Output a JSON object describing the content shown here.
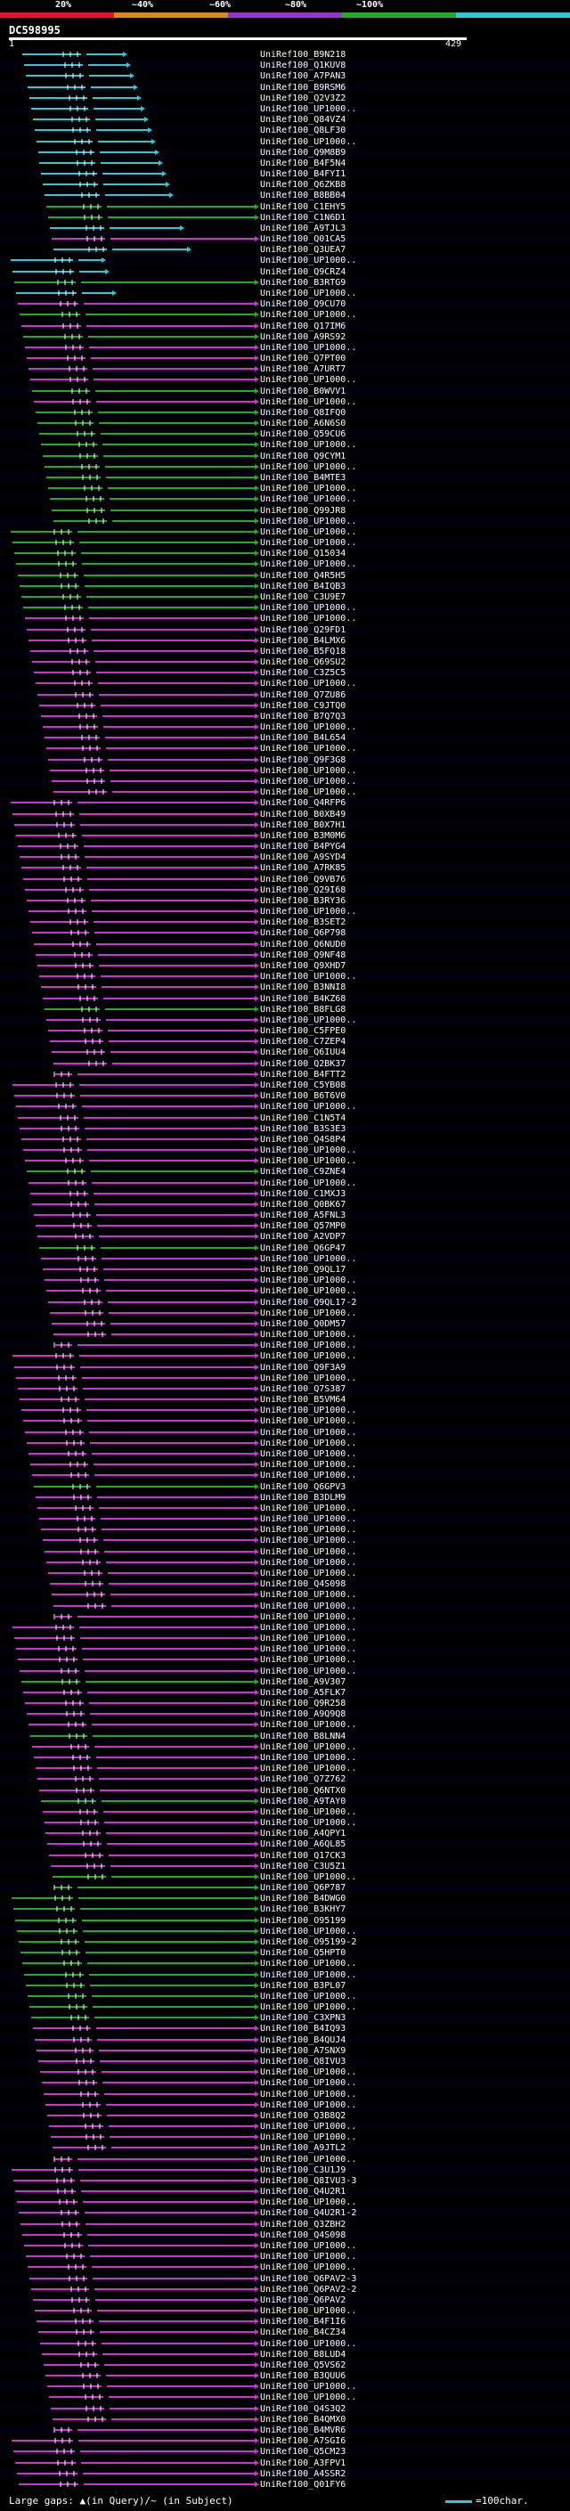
{
  "legend": {
    "labels": [
      "20%",
      "~40%",
      "~60%",
      "~80%",
      "~100%"
    ],
    "colors": [
      "#e8112d",
      "#d98a1b",
      "#9932cc",
      "#22aa22",
      "#33c6d6"
    ]
  },
  "query": {
    "name": "DC598995",
    "start": "1",
    "end": "429"
  },
  "footer": {
    "gaps_text": "Large gaps: ▲(in Query)/~ (in Subject)",
    "scale_text": "=100char."
  },
  "hits": [
    {
      "label": "UniRef100_B9N218",
      "color": "cyan"
    },
    {
      "label": "UniRef100_Q1KUV8",
      "color": "cyan"
    },
    {
      "label": "UniRef100_A7PAN3",
      "color": "cyan"
    },
    {
      "label": "UniRef100_B9RSM6",
      "color": "cyan"
    },
    {
      "label": "UniRef100_Q2V3Z2",
      "color": "cyan"
    },
    {
      "label": "UniRef100_UP1000..",
      "color": "cyan"
    },
    {
      "label": "UniRef100_Q84VZ4",
      "color": "cyan"
    },
    {
      "label": "UniRef100_Q8LF30",
      "color": "cyan"
    },
    {
      "label": "UniRef100_UP1000..",
      "color": "cyan"
    },
    {
      "label": "UniRef100_Q9M8B9",
      "color": "cyan"
    },
    {
      "label": "UniRef100_B4F5N4",
      "color": "cyan"
    },
    {
      "label": "UniRef100_B4FYI1",
      "color": "cyan"
    },
    {
      "label": "UniRef100_Q6ZKB8",
      "color": "cyan"
    },
    {
      "label": "UniRef100_B8BB04",
      "color": "cyan"
    },
    {
      "label": "UniRef100_C1EHY5",
      "color": "green"
    },
    {
      "label": "UniRef100_C1N6D1",
      "color": "green"
    },
    {
      "label": "UniRef100_A9TJL3",
      "color": "cyan"
    },
    {
      "label": "UniRef100_Q01CA5",
      "color": "magenta"
    },
    {
      "label": "UniRef100_Q3UEA7",
      "color": "cyan"
    },
    {
      "label": "UniRef100_UP1000..",
      "color": "cyan"
    },
    {
      "label": "UniRef100_Q9CRZ4",
      "color": "cyan"
    },
    {
      "label": "UniRef100_B3RTG9",
      "color": "green"
    },
    {
      "label": "UniRef100_UP1000..",
      "color": "cyan"
    },
    {
      "label": "UniRef100_Q9CU70",
      "color": "magenta"
    },
    {
      "label": "UniRef100_UP1000..",
      "color": "green"
    },
    {
      "label": "UniRef100_Q17IM6",
      "color": "magenta"
    },
    {
      "label": "UniRef100_A9RS92",
      "color": "green"
    },
    {
      "label": "UniRef100_UP1000..",
      "color": "magenta"
    },
    {
      "label": "UniRef100_Q7PT00",
      "color": "magenta"
    },
    {
      "label": "UniRef100_A7URT7",
      "color": "magenta"
    },
    {
      "label": "UniRef100_UP1000..",
      "color": "magenta"
    },
    {
      "label": "UniRef100_B0WVV1",
      "color": "green"
    },
    {
      "label": "UniRef100_UP1000..",
      "color": "magenta"
    },
    {
      "label": "UniRef100_Q8IFQ0",
      "color": "green"
    },
    {
      "label": "UniRef100_A6N6S0",
      "color": "green"
    },
    {
      "label": "UniRef100_Q59CU6",
      "color": "green"
    },
    {
      "label": "UniRef100_UP1000..",
      "color": "green"
    },
    {
      "label": "UniRef100_Q9CYM1",
      "color": "green"
    },
    {
      "label": "UniRef100_UP1000..",
      "color": "green"
    },
    {
      "label": "UniRef100_B4MTE3",
      "color": "green"
    },
    {
      "label": "UniRef100_UP1000..",
      "color": "green"
    },
    {
      "label": "UniRef100_UP1000..",
      "color": "green"
    },
    {
      "label": "UniRef100_Q99JR8",
      "color": "green"
    },
    {
      "label": "UniRef100_UP1000..",
      "color": "green"
    },
    {
      "label": "UniRef100_UP1000..",
      "color": "green"
    },
    {
      "label": "UniRef100_UP1000..",
      "color": "green"
    },
    {
      "label": "UniRef100_Q15034",
      "color": "green"
    },
    {
      "label": "UniRef100_UP1000..",
      "color": "green"
    },
    {
      "label": "UniRef100_Q4R5H5",
      "color": "green"
    },
    {
      "label": "UniRef100_B4IQB3",
      "color": "green"
    },
    {
      "label": "UniRef100_C3U9E7",
      "color": "green"
    },
    {
      "label": "UniRef100_UP1000..",
      "color": "green"
    },
    {
      "label": "UniRef100_UP1000..",
      "color": "magenta"
    },
    {
      "label": "UniRef100_Q29FD1",
      "color": "magenta"
    },
    {
      "label": "UniRef100_B4LMX6",
      "color": "magenta"
    },
    {
      "label": "UniRef100_B5FQ18",
      "color": "magenta"
    },
    {
      "label": "UniRef100_Q69SU2",
      "color": "magenta"
    },
    {
      "label": "UniRef100_C3Z5C5",
      "color": "magenta"
    },
    {
      "label": "UniRef100_UP1000..",
      "color": "magenta"
    },
    {
      "label": "UniRef100_Q7ZU86",
      "color": "magenta"
    },
    {
      "label": "UniRef100_C9JTQ0",
      "color": "magenta"
    },
    {
      "label": "UniRef100_B7Q7Q3",
      "color": "magenta"
    },
    {
      "label": "UniRef100_UP1000..",
      "color": "magenta"
    },
    {
      "label": "UniRef100_B4L654",
      "color": "magenta"
    },
    {
      "label": "UniRef100_UP1000..",
      "color": "magenta"
    },
    {
      "label": "UniRef100_Q9F3G8",
      "color": "magenta"
    },
    {
      "label": "UniRef100_UP1000..",
      "color": "magenta"
    },
    {
      "label": "UniRef100_UP1000..",
      "color": "magenta"
    },
    {
      "label": "UniRef100_UP1000..",
      "color": "magenta"
    },
    {
      "label": "UniRef100_Q4RFP6",
      "color": "magenta"
    },
    {
      "label": "UniRef100_B0XB49",
      "color": "magenta"
    },
    {
      "label": "UniRef100_B0X7H1",
      "color": "magenta"
    },
    {
      "label": "UniRef100_B3M0M6",
      "color": "magenta"
    },
    {
      "label": "UniRef100_B4PYG4",
      "color": "magenta"
    },
    {
      "label": "UniRef100_A9SYD4",
      "color": "magenta"
    },
    {
      "label": "UniRef100_A7RK85",
      "color": "magenta"
    },
    {
      "label": "UniRef100_Q9VB76",
      "color": "magenta"
    },
    {
      "label": "UniRef100_Q29I68",
      "color": "magenta"
    },
    {
      "label": "UniRef100_B3RY36",
      "color": "magenta"
    },
    {
      "label": "UniRef100_UP1000..",
      "color": "magenta"
    },
    {
      "label": "UniRef100_B3SET2",
      "color": "magenta"
    },
    {
      "label": "UniRef100_Q6P798",
      "color": "magenta"
    },
    {
      "label": "UniRef100_Q6NUD0",
      "color": "magenta"
    },
    {
      "label": "UniRef100_Q9NF48",
      "color": "magenta"
    },
    {
      "label": "UniRef100_Q9XHD7",
      "color": "magenta"
    },
    {
      "label": "UniRef100_UP1000..",
      "color": "magenta"
    },
    {
      "label": "UniRef100_B3NNI8",
      "color": "magenta"
    },
    {
      "label": "UniRef100_B4KZ68",
      "color": "magenta"
    },
    {
      "label": "UniRef100_B8FLG8",
      "color": "green"
    },
    {
      "label": "UniRef100_UP1000..",
      "color": "magenta"
    },
    {
      "label": "UniRef100_C5FPE0",
      "color": "magenta"
    },
    {
      "label": "UniRef100_C7ZEP4",
      "color": "magenta"
    },
    {
      "label": "UniRef100_Q6IUU4",
      "color": "magenta"
    },
    {
      "label": "UniRef100_Q2BK37",
      "color": "magenta"
    },
    {
      "label": "UniRef100_B4FTT2",
      "color": "magenta"
    },
    {
      "label": "UniRef100_C5YB08",
      "color": "magenta"
    },
    {
      "label": "UniRef100_B6T6V0",
      "color": "magenta"
    },
    {
      "label": "UniRef100_UP1000..",
      "color": "magenta"
    },
    {
      "label": "UniRef100_C1N5T4",
      "color": "magenta"
    },
    {
      "label": "UniRef100_B3S3E3",
      "color": "magenta"
    },
    {
      "label": "UniRef100_Q4S8P4",
      "color": "magenta"
    },
    {
      "label": "UniRef100_UP1000..",
      "color": "magenta"
    },
    {
      "label": "UniRef100_UP1000..",
      "color": "magenta"
    },
    {
      "label": "UniRef100_C9ZNE4",
      "color": "green"
    },
    {
      "label": "UniRef100_UP1000..",
      "color": "magenta"
    },
    {
      "label": "UniRef100_C1MXJ3",
      "color": "magenta"
    },
    {
      "label": "UniRef100_Q0BK67",
      "color": "magenta"
    },
    {
      "label": "UniRef100_A5FNL3",
      "color": "magenta"
    },
    {
      "label": "UniRef100_Q57MP0",
      "color": "magenta"
    },
    {
      "label": "UniRef100_A2VDP7",
      "color": "magenta"
    },
    {
      "label": "UniRef100_Q6GP47",
      "color": "green"
    },
    {
      "label": "UniRef100_UP1000..",
      "color": "magenta"
    },
    {
      "label": "UniRef100_Q9QL17",
      "color": "magenta"
    },
    {
      "label": "UniRef100_UP1000..",
      "color": "magenta"
    },
    {
      "label": "UniRef100_UP1000..",
      "color": "magenta"
    },
    {
      "label": "UniRef100_Q9QL17-2",
      "color": "magenta"
    },
    {
      "label": "UniRef100_UP1000..",
      "color": "magenta"
    },
    {
      "label": "UniRef100_Q0DM57",
      "color": "magenta"
    },
    {
      "label": "UniRef100_UP1000..",
      "color": "magenta"
    },
    {
      "label": "UniRef100_UP1000..",
      "color": "magenta"
    },
    {
      "label": "UniRef100_UP1000..",
      "color": "magenta"
    },
    {
      "label": "UniRef100_Q9F3A9",
      "color": "magenta"
    },
    {
      "label": "UniRef100_UP1000..",
      "color": "magenta"
    },
    {
      "label": "UniRef100_Q7S387",
      "color": "magenta"
    },
    {
      "label": "UniRef100_B5VM64",
      "color": "magenta"
    },
    {
      "label": "UniRef100_UP1000..",
      "color": "magenta"
    },
    {
      "label": "UniRef100_UP1000..",
      "color": "magenta"
    },
    {
      "label": "UniRef100_UP1000..",
      "color": "magenta"
    },
    {
      "label": "UniRef100_UP1000..",
      "color": "magenta"
    },
    {
      "label": "UniRef100_UP1000..",
      "color": "magenta"
    },
    {
      "label": "UniRef100_UP1000..",
      "color": "magenta"
    },
    {
      "label": "UniRef100_UP1000..",
      "color": "magenta"
    },
    {
      "label": "UniRef100_Q6GPV3",
      "color": "green"
    },
    {
      "label": "UniRef100_B3DLM9",
      "color": "magenta"
    },
    {
      "label": "UniRef100_UP1000..",
      "color": "magenta"
    },
    {
      "label": "UniRef100_UP1000..",
      "color": "magenta"
    },
    {
      "label": "UniRef100_UP1000..",
      "color": "magenta"
    },
    {
      "label": "UniRef100_UP1000..",
      "color": "magenta"
    },
    {
      "label": "UniRef100_UP1000..",
      "color": "magenta"
    },
    {
      "label": "UniRef100_UP1000..",
      "color": "magenta"
    },
    {
      "label": "UniRef100_UP1000..",
      "color": "magenta"
    },
    {
      "label": "UniRef100_Q4S098",
      "color": "magenta"
    },
    {
      "label": "UniRef100_UP1000..",
      "color": "magenta"
    },
    {
      "label": "UniRef100_UP1000..",
      "color": "magenta"
    },
    {
      "label": "UniRef100_UP1000..",
      "color": "magenta"
    },
    {
      "label": "UniRef100_UP1000..",
      "color": "magenta"
    },
    {
      "label": "UniRef100_UP1000..",
      "color": "magenta"
    },
    {
      "label": "UniRef100_UP1000..",
      "color": "magenta"
    },
    {
      "label": "UniRef100_UP1000..",
      "color": "magenta"
    },
    {
      "label": "UniRef100_UP1000..",
      "color": "magenta"
    },
    {
      "label": "UniRef100_A9V307",
      "color": "green"
    },
    {
      "label": "UniRef100_A5FLK7",
      "color": "magenta"
    },
    {
      "label": "UniRef100_Q9R258",
      "color": "magenta"
    },
    {
      "label": "UniRef100_A9Q9Q8",
      "color": "magenta"
    },
    {
      "label": "UniRef100_UP1000..",
      "color": "magenta"
    },
    {
      "label": "UniRef100_B8LNN4",
      "color": "green"
    },
    {
      "label": "UniRef100_UP1000..",
      "color": "magenta"
    },
    {
      "label": "UniRef100_UP1000..",
      "color": "magenta"
    },
    {
      "label": "UniRef100_UP1000..",
      "color": "magenta"
    },
    {
      "label": "UniRef100_Q7Z762",
      "color": "magenta"
    },
    {
      "label": "UniRef100_Q6NTX0",
      "color": "magenta"
    },
    {
      "label": "UniRef100_A9TAY0",
      "color": "green"
    },
    {
      "label": "UniRef100_UP1000..",
      "color": "magenta"
    },
    {
      "label": "UniRef100_UP1000..",
      "color": "magenta"
    },
    {
      "label": "UniRef100_A4QPY1",
      "color": "magenta"
    },
    {
      "label": "UniRef100_A6QL85",
      "color": "magenta"
    },
    {
      "label": "UniRef100_Q17CK3",
      "color": "magenta"
    },
    {
      "label": "UniRef100_C3U5Z1",
      "color": "magenta"
    },
    {
      "label": "UniRef100_UP1000..",
      "color": "green"
    },
    {
      "label": "UniRef100_Q6P787",
      "color": "green"
    },
    {
      "label": "UniRef100_B4DWG0",
      "color": "green"
    },
    {
      "label": "UniRef100_B3KHY7",
      "color": "green"
    },
    {
      "label": "UniRef100_O95199",
      "color": "green"
    },
    {
      "label": "UniRef100_UP1000..",
      "color": "green"
    },
    {
      "label": "UniRef100_O95199-2",
      "color": "green"
    },
    {
      "label": "UniRef100_Q5HPT0",
      "color": "green"
    },
    {
      "label": "UniRef100_UP1000..",
      "color": "green"
    },
    {
      "label": "UniRef100_UP1000..",
      "color": "green"
    },
    {
      "label": "UniRef100_B3PL07",
      "color": "green"
    },
    {
      "label": "UniRef100_UP1000..",
      "color": "green"
    },
    {
      "label": "UniRef100_UP1000..",
      "color": "green"
    },
    {
      "label": "UniRef100_C3XPN3",
      "color": "green"
    },
    {
      "label": "UniRef100_B4IQ93",
      "color": "magenta"
    },
    {
      "label": "UniRef100_B4QUJ4",
      "color": "magenta"
    },
    {
      "label": "UniRef100_A7SNX9",
      "color": "magenta"
    },
    {
      "label": "UniRef100_Q8IVU3",
      "color": "magenta"
    },
    {
      "label": "UniRef100_UP1000..",
      "color": "magenta"
    },
    {
      "label": "UniRef100_UP1000..",
      "color": "magenta"
    },
    {
      "label": "UniRef100_UP1000..",
      "color": "magenta"
    },
    {
      "label": "UniRef100_UP1000..",
      "color": "magenta"
    },
    {
      "label": "UniRef100_Q3B8Q2",
      "color": "magenta"
    },
    {
      "label": "UniRef100_UP1000..",
      "color": "magenta"
    },
    {
      "label": "UniRef100_UP1000..",
      "color": "magenta"
    },
    {
      "label": "UniRef100_A9JTL2",
      "color": "magenta"
    },
    {
      "label": "UniRef100_UP1000..",
      "color": "magenta"
    },
    {
      "label": "UniRef100_C3U1J9",
      "color": "magenta"
    },
    {
      "label": "UniRef100_Q8IVU3-3",
      "color": "magenta"
    },
    {
      "label": "UniRef100_Q4U2R1",
      "color": "magenta"
    },
    {
      "label": "UniRef100_UP1000..",
      "color": "magenta"
    },
    {
      "label": "UniRef100_Q4U2R1-2",
      "color": "magenta"
    },
    {
      "label": "UniRef100_Q3ZBH2",
      "color": "magenta"
    },
    {
      "label": "UniRef100_Q4S098",
      "color": "magenta"
    },
    {
      "label": "UniRef100_UP1000..",
      "color": "magenta"
    },
    {
      "label": "UniRef100_UP1000..",
      "color": "magenta"
    },
    {
      "label": "UniRef100_UP1000..",
      "color": "magenta"
    },
    {
      "label": "UniRef100_Q6PAV2-3",
      "color": "magenta"
    },
    {
      "label": "UniRef100_Q6PAV2-2",
      "color": "magenta"
    },
    {
      "label": "UniRef100_Q6PAV2",
      "color": "magenta"
    },
    {
      "label": "UniRef100_UP1000..",
      "color": "magenta"
    },
    {
      "label": "UniRef100_B4F1I6",
      "color": "magenta"
    },
    {
      "label": "UniRef100_B4CZ34",
      "color": "magenta"
    },
    {
      "label": "UniRef100_UP1000..",
      "color": "magenta"
    },
    {
      "label": "UniRef100_B8LUD4",
      "color": "magenta"
    },
    {
      "label": "UniRef100_Q5VS62",
      "color": "magenta"
    },
    {
      "label": "UniRef100_B3QUU6",
      "color": "magenta"
    },
    {
      "label": "UniRef100_UP1000..",
      "color": "magenta"
    },
    {
      "label": "UniRef100_UP1000..",
      "color": "magenta"
    },
    {
      "label": "UniRef100_Q4S3Q2",
      "color": "magenta"
    },
    {
      "label": "UniRef100_B4QMX0",
      "color": "magenta"
    },
    {
      "label": "UniRef100_B4MVR6",
      "color": "magenta"
    },
    {
      "label": "UniRef100_A7SGI6",
      "color": "magenta"
    },
    {
      "label": "UniRef100_Q5CM23",
      "color": "magenta"
    },
    {
      "label": "UniRef100_A3FPV1",
      "color": "magenta"
    },
    {
      "label": "UniRef100_A4SSR2",
      "color": "magenta"
    },
    {
      "label": "UniRef100_Q01FY6",
      "color": "magenta"
    }
  ]
}
